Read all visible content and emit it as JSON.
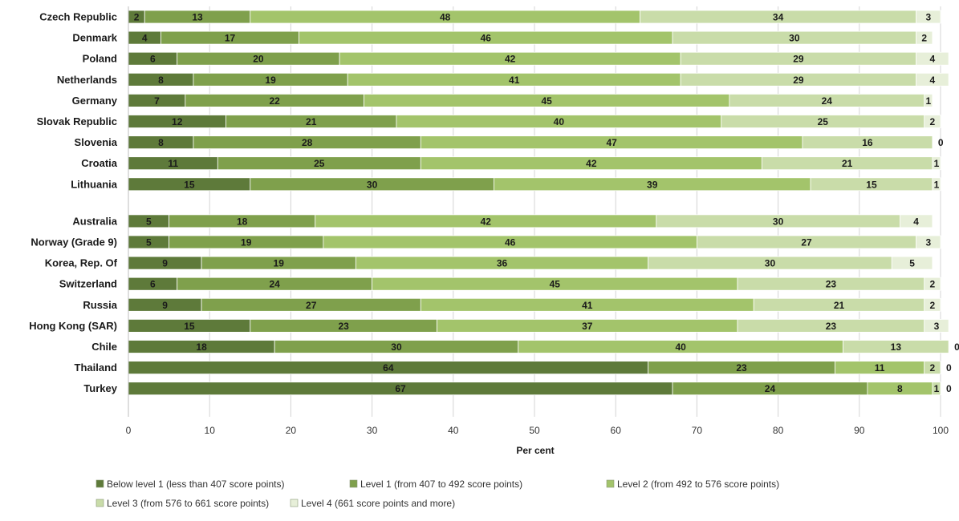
{
  "chart_data": {
    "type": "bar",
    "orientation": "horizontal",
    "stacked": true,
    "xlabel": "Per cent",
    "xlim": [
      0,
      100
    ],
    "x_ticks": [
      0,
      10,
      20,
      30,
      40,
      50,
      60,
      70,
      80,
      90,
      100
    ],
    "grid": "vertical",
    "legend_position": "bottom",
    "groups": [
      [
        "Czech Republic",
        "Denmark",
        "Poland",
        "Netherlands",
        "Germany",
        "Slovak Republic",
        "Slovenia",
        "Croatia",
        "Lithuania"
      ],
      [
        "Australia",
        "Norway (Grade 9)",
        "Korea, Rep. Of",
        "Switzerland",
        "Russia",
        "Hong Kong (SAR)",
        "Chile",
        "Thailand",
        "Turkey"
      ]
    ],
    "categories": [
      "Czech Republic",
      "Denmark",
      "Poland",
      "Netherlands",
      "Germany",
      "Slovak Republic",
      "Slovenia",
      "Croatia",
      "Lithuania",
      "Australia",
      "Norway (Grade 9)",
      "Korea, Rep. Of",
      "Switzerland",
      "Russia",
      "Hong Kong (SAR)",
      "Chile",
      "Thailand",
      "Turkey"
    ],
    "series": [
      {
        "name": "Below level 1 (less than 407 score points)",
        "color": "#5e7a3a",
        "values": [
          2,
          4,
          6,
          8,
          7,
          12,
          8,
          11,
          15,
          5,
          5,
          9,
          6,
          9,
          15,
          18,
          64,
          67
        ]
      },
      {
        "name": "Level 1 (from 407 to 492 score points)",
        "color": "#7fa04c",
        "values": [
          13,
          17,
          20,
          19,
          22,
          21,
          28,
          25,
          30,
          18,
          19,
          19,
          24,
          27,
          23,
          30,
          23,
          24
        ]
      },
      {
        "name": "Level 2 (from 492 to 576 score points)",
        "color": "#a3c46b",
        "values": [
          48,
          46,
          42,
          41,
          45,
          40,
          47,
          42,
          39,
          42,
          46,
          36,
          45,
          41,
          37,
          40,
          11,
          8
        ]
      },
      {
        "name": "Level 3 (from 576 to 661 score points)",
        "color": "#c9dca9",
        "values": [
          34,
          30,
          29,
          29,
          24,
          25,
          16,
          21,
          15,
          30,
          27,
          30,
          23,
          21,
          23,
          13,
          2,
          1
        ]
      },
      {
        "name": "Level 4 (661 score points and more)",
        "color": "#e7efd9",
        "values": [
          3,
          2,
          4,
          4,
          1,
          2,
          0,
          1,
          1,
          4,
          3,
          5,
          2,
          2,
          3,
          0,
          0,
          0
        ]
      }
    ]
  }
}
